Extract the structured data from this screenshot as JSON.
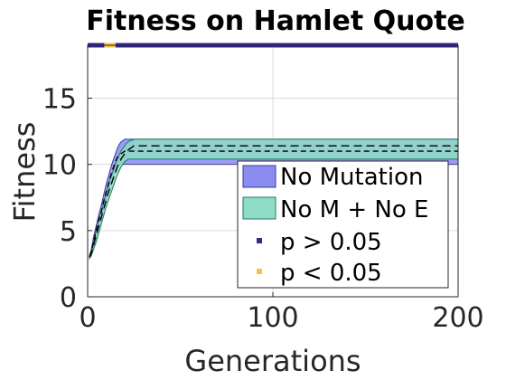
{
  "chart_data": {
    "type": "line",
    "title": "Fitness on Hamlet Quote",
    "xlabel": "Generations",
    "ylabel": "Fitness",
    "xlim": [
      0,
      200
    ],
    "ylim": [
      0,
      19
    ],
    "xticks": [
      0,
      100,
      200
    ],
    "yticks": [
      0,
      5,
      10,
      15
    ],
    "grid": true,
    "legend_position": "bottom-right",
    "series": [
      {
        "name": "No Mutation",
        "color": "#8b8cf0",
        "edge_color": "#3a3aa8",
        "x": [
          1,
          2,
          3,
          4,
          5,
          6,
          7,
          8,
          9,
          10,
          11,
          12,
          13,
          14,
          15,
          16,
          17,
          18,
          19,
          20,
          21,
          200
        ],
        "mean": [
          3,
          3.4,
          4,
          4.6,
          5.2,
          5.8,
          6.2,
          6.8,
          7.4,
          7.9,
          8.4,
          8.9,
          9.4,
          9.8,
          10.2,
          10.5,
          10.7,
          10.8,
          10.9,
          11,
          11,
          11
        ],
        "lower": [
          2.9,
          3.2,
          3.6,
          4.2,
          4.8,
          5.3,
          5.7,
          6.3,
          6.9,
          7.4,
          7.8,
          8.3,
          8.8,
          9.2,
          9.6,
          9.9,
          10,
          10,
          10,
          10,
          10,
          10
        ],
        "upper": [
          3.1,
          3.6,
          4.4,
          5,
          5.6,
          6.2,
          6.7,
          7.3,
          7.9,
          8.5,
          9,
          9.5,
          10,
          10.4,
          10.8,
          11.2,
          11.5,
          11.7,
          11.8,
          11.9,
          11.9,
          11.9
        ]
      },
      {
        "name": "No M + No E",
        "color": "#8fdcc6",
        "edge_color": "#1f7a60",
        "x": [
          1,
          2,
          3,
          4,
          5,
          6,
          7,
          8,
          9,
          10,
          11,
          12,
          13,
          14,
          15,
          16,
          17,
          18,
          19,
          20,
          21,
          22,
          23,
          24,
          25,
          200
        ],
        "mean": [
          3,
          3.3,
          3.8,
          4.3,
          4.8,
          5.3,
          5.8,
          6.3,
          6.8,
          7.3,
          7.8,
          8.2,
          8.6,
          9,
          9.4,
          9.8,
          10.1,
          10.4,
          10.6,
          10.8,
          11,
          11.1,
          11.2,
          11.3,
          11.4,
          11.4
        ],
        "lower": [
          2.9,
          3.1,
          3.5,
          3.9,
          4.3,
          4.8,
          5.3,
          5.8,
          6.3,
          6.8,
          7.2,
          7.6,
          8,
          8.4,
          8.8,
          9.2,
          9.5,
          9.8,
          10,
          10.2,
          10.3,
          10.4,
          10.4,
          10.4,
          10.4,
          10.4
        ],
        "upper": [
          3.1,
          3.5,
          4.1,
          4.7,
          5.3,
          5.8,
          6.3,
          6.8,
          7.3,
          7.8,
          8.3,
          8.8,
          9.2,
          9.6,
          10,
          10.4,
          10.7,
          11,
          11.2,
          11.4,
          11.6,
          11.7,
          11.8,
          11.8,
          11.9,
          11.9
        ]
      }
    ],
    "significance": {
      "y": 19,
      "markers": [
        {
          "name": "p > 0.05",
          "color": "#32288f",
          "ranges": [
            [
              0,
              9
            ],
            [
              15,
              200
            ]
          ]
        },
        {
          "name": "p < 0.05",
          "color": "#f5c542",
          "ranges": [
            [
              9,
              15
            ]
          ]
        }
      ]
    }
  }
}
